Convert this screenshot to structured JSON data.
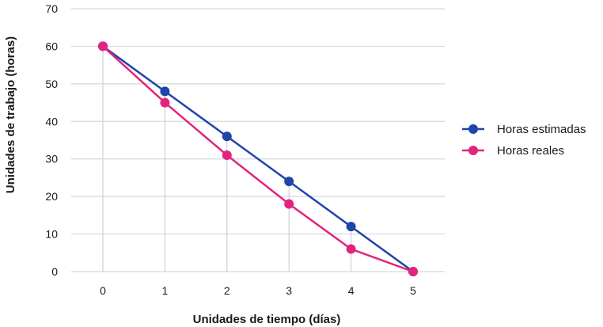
{
  "chart_data": {
    "type": "line",
    "title": "",
    "xlabel": "Unidades de tiempo (días)",
    "ylabel": "Unidades de trabajo (horas)",
    "x": [
      0,
      1,
      2,
      3,
      4,
      5
    ],
    "x_tick_labels": [
      "0",
      "1",
      "2",
      "3",
      "4",
      "5"
    ],
    "y_tick_labels": [
      "0",
      "10",
      "20",
      "30",
      "40",
      "50",
      "60",
      "70"
    ],
    "ylim": [
      0,
      70
    ],
    "y_ticks": [
      0,
      10,
      20,
      30,
      40,
      50,
      60,
      70
    ],
    "grid": "horizontal and vertical drop lines",
    "legend_position": "right",
    "series": [
      {
        "name": "Horas estimadas",
        "color": "#1f45a8",
        "values": [
          60,
          48,
          36,
          24,
          12,
          0
        ]
      },
      {
        "name": "Horas reales",
        "color": "#e3247c",
        "values": [
          60,
          45,
          31,
          18,
          6,
          0
        ]
      }
    ]
  }
}
